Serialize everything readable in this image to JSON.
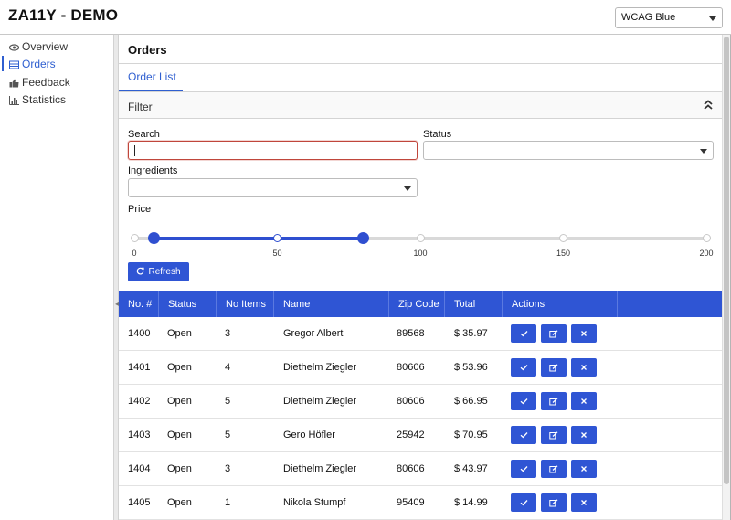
{
  "app": {
    "title": "ZA11Y - DEMO"
  },
  "theme_select": {
    "value": "WCAG Blue"
  },
  "sidebar": {
    "items": [
      {
        "label": "Overview",
        "icon": "eye-icon"
      },
      {
        "label": "Orders",
        "icon": "table-icon"
      },
      {
        "label": "Feedback",
        "icon": "thumbs-up-icon"
      },
      {
        "label": "Statistics",
        "icon": "bar-chart-icon"
      }
    ]
  },
  "page": {
    "title": "Orders",
    "tab": "Order List",
    "filter_label": "Filter"
  },
  "filter": {
    "search_label": "Search",
    "search_value": "",
    "status_label": "Status",
    "status_value": "",
    "ingredients_label": "Ingredients",
    "ingredients_value": "",
    "price_label": "Price",
    "price_range": {
      "min": 0,
      "max": 200,
      "selected_low": 7,
      "selected_high": 80
    },
    "tick_labels": [
      "0",
      "50",
      "100",
      "150",
      "200"
    ],
    "refresh_label": "Refresh"
  },
  "table": {
    "headers": [
      "No. #",
      "Status",
      "No Items",
      "Name",
      "Zip Code",
      "Total",
      "Actions"
    ],
    "rows": [
      {
        "no": "1400",
        "status": "Open",
        "items": "3",
        "name": "Gregor Albert",
        "zip": "89568",
        "total": "$ 35.97"
      },
      {
        "no": "1401",
        "status": "Open",
        "items": "4",
        "name": "Diethelm Ziegler",
        "zip": "80606",
        "total": "$ 53.96"
      },
      {
        "no": "1402",
        "status": "Open",
        "items": "5",
        "name": "Diethelm Ziegler",
        "zip": "80606",
        "total": "$ 66.95"
      },
      {
        "no": "1403",
        "status": "Open",
        "items": "5",
        "name": "Gero Höfler",
        "zip": "25942",
        "total": "$ 70.95"
      },
      {
        "no": "1404",
        "status": "Open",
        "items": "3",
        "name": "Diethelm Ziegler",
        "zip": "80606",
        "total": "$ 43.97"
      },
      {
        "no": "1405",
        "status": "Open",
        "items": "1",
        "name": "Nikola Stumpf",
        "zip": "95409",
        "total": "$ 14.99"
      }
    ],
    "action_icons": [
      "check-icon",
      "edit-icon",
      "close-icon"
    ]
  },
  "colors": {
    "accent": "#2f55d4",
    "focus_border": "#c0463b"
  }
}
